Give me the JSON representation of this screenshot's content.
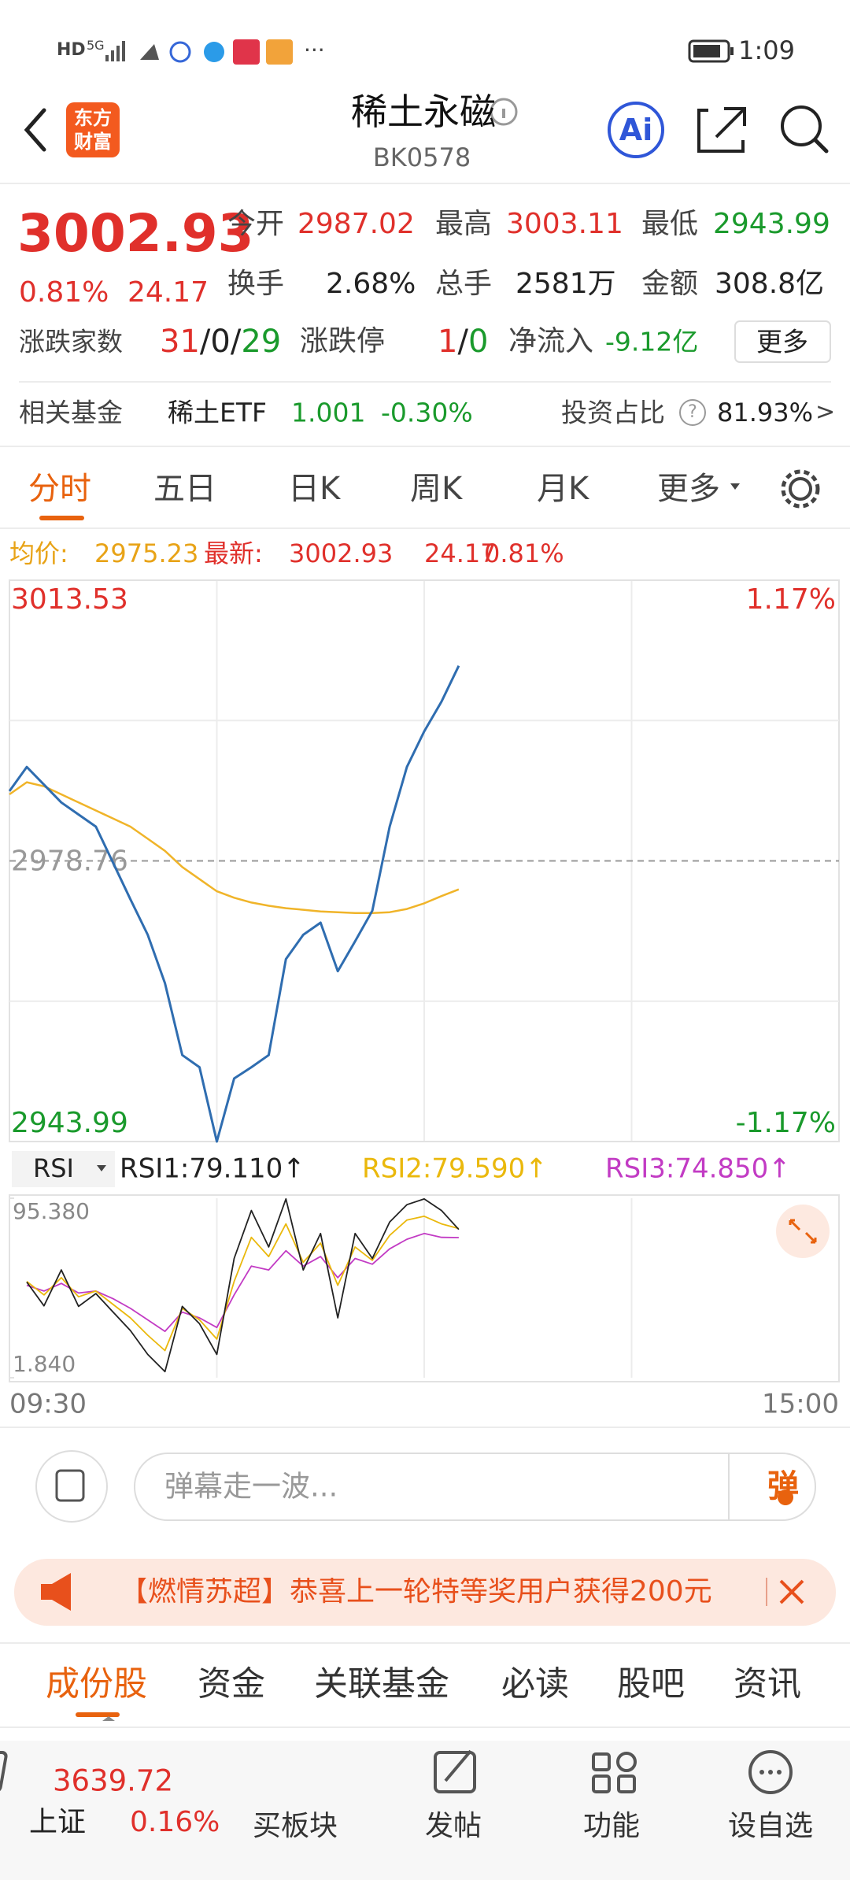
{
  "status_bar": {
    "hd": "HD",
    "network": "5G",
    "more": "···",
    "time": "1:09"
  },
  "header": {
    "logo": [
      "东方",
      "财富"
    ],
    "title": "稀土永磁",
    "code": "BK0578",
    "ai": "Ai"
  },
  "quote": {
    "price": "3002.93",
    "change_pct": "0.81%",
    "change": "24.17",
    "stats": [
      {
        "label": "今开",
        "value": "2987.02",
        "color": "#e0302b"
      },
      {
        "label": "最高",
        "value": "3003.11",
        "color": "#e0302b"
      },
      {
        "label": "最低",
        "value": "2943.99",
        "color": "#1a9a2c"
      },
      {
        "label": "换手",
        "value": "2.68%",
        "color": "#222222"
      },
      {
        "label": "总手",
        "value": "2581万",
        "color": "#222222"
      },
      {
        "label": "金额",
        "value": "308.8亿",
        "color": "#222222"
      }
    ],
    "breadth": {
      "label": "涨跌家数",
      "up": "31",
      "sep1": "/",
      "flat": "0",
      "sep2": "/",
      "down": "29"
    },
    "limit": {
      "label": "涨跌停",
      "up": "1",
      "sep": "/",
      "down": "0"
    },
    "net_inflow": {
      "label": "净流入",
      "value": "-9.12亿"
    },
    "more_button": "更多"
  },
  "fund": {
    "label": "相关基金",
    "name": "稀土ETF",
    "price": "1.001",
    "change": "-0.30%",
    "ratio_label": "投资占比",
    "help": "?",
    "ratio": "81.93%",
    "arrow": ">"
  },
  "tabs": {
    "items": [
      "分时",
      "五日",
      "日K",
      "周K",
      "月K",
      "更多"
    ]
  },
  "summary": {
    "avg_label": "均价:",
    "avg": "2975.23",
    "last_label": "最新:",
    "last": "3002.93",
    "change": "24.17",
    "change_pct": "0.81%"
  },
  "chart_data": [
    {
      "type": "line",
      "x": [
        "09:30",
        "09:35",
        "09:40",
        "09:45",
        "09:50",
        "09:55",
        "10:00",
        "10:05",
        "10:10",
        "10:15",
        "10:20",
        "10:25",
        "10:30",
        "10:35",
        "10:40",
        "10:45",
        "10:50",
        "10:55",
        "11:00",
        "11:05",
        "11:10",
        "11:15",
        "11:20",
        "11:25",
        "11:30",
        "13:05",
        "13:10"
      ],
      "series": [
        {
          "color": "#2f6db0",
          "values": [
            2987.4,
            2990.4,
            2988.2,
            2986.0,
            2984.5,
            2983.0,
            2978.5,
            2974.0,
            2969.6,
            2963.6,
            2954.7,
            2953.2,
            2943.99,
            2951.8,
            2953.2,
            2954.7,
            2966.6,
            2969.6,
            2971.1,
            2965.1,
            2968.8,
            2972.6,
            2983.0,
            2990.4,
            2994.8,
            2998.5,
            3002.93
          ]
        },
        {
          "color": "#f0b429",
          "values": [
            2987.0,
            2988.5,
            2988.0,
            2987.0,
            2986.0,
            2985.0,
            2984.0,
            2983.0,
            2981.5,
            2980.0,
            2978.0,
            2976.5,
            2975.0,
            2974.2,
            2973.6,
            2973.2,
            2972.9,
            2972.7,
            2972.5,
            2972.4,
            2972.3,
            2972.3,
            2972.4,
            2972.8,
            2973.5,
            2974.4,
            2975.23
          ]
        }
      ],
      "xticks": [
        "09:30",
        "15:00"
      ],
      "ylim": [
        2943.99,
        3013.53
      ],
      "yticks": [
        3013.53,
        2978.76,
        2943.99
      ],
      "y2lim": [
        -1.17,
        1.17
      ],
      "y2ticks": [
        {
          "value": 1.17,
          "label": "1.17%"
        },
        {
          "value": -1.17,
          "label": "-1.17%"
        }
      ],
      "grid": true
    },
    {
      "type": "line",
      "selector": "RSI",
      "x": [
        "09:30",
        "09:35",
        "09:40",
        "09:45",
        "09:50",
        "09:55",
        "10:00",
        "10:05",
        "10:10",
        "10:15",
        "10:20",
        "10:25",
        "10:30",
        "10:35",
        "10:40",
        "10:45",
        "10:50",
        "10:55",
        "11:00",
        "11:05",
        "11:10",
        "11:15",
        "11:20",
        "11:25",
        "11:30",
        "13:05",
        "13:10"
      ],
      "series": [
        {
          "name": "RSI1:79.110↑",
          "color": "#222222",
          "values": [
            null,
            51.7,
            39.3,
            58,
            39,
            45.7,
            36,
            26.4,
            14,
            5,
            39,
            30,
            14,
            64,
            89,
            70,
            95,
            58,
            77,
            33,
            77,
            64,
            83,
            92,
            95,
            89,
            79.11
          ]
        },
        {
          "name": "RSI2:79.590↑",
          "color": "#eab80c",
          "values": [
            null,
            52,
            45,
            54,
            44,
            47,
            40,
            33,
            24,
            16,
            38,
            32,
            22,
            52,
            75,
            65,
            82,
            62,
            72,
            50,
            70,
            63,
            76,
            84,
            86,
            82,
            79.59
          ]
        },
        {
          "name": "RSI3:74.850↑",
          "color": "#c23bc4",
          "values": [
            null,
            50,
            47,
            51,
            46,
            47,
            43,
            38,
            32,
            26,
            36,
            33,
            28,
            45,
            60,
            58,
            68,
            60,
            65,
            54,
            64,
            61,
            69,
            74,
            77,
            75,
            74.85
          ]
        }
      ],
      "xticks": [
        "09:30",
        "15:00"
      ],
      "ylim": [
        1.84,
        95.38
      ],
      "yticks": [
        {
          "value": 95.38,
          "label": "95.380"
        },
        {
          "value": 1.84,
          "label": "1.840"
        }
      ],
      "grid": true
    }
  ],
  "comment": {
    "placeholder": "弹幕走一波...",
    "button": "弹"
  },
  "banner": {
    "text": "【燃情苏超】恭喜上一轮特等奖用户获得200元"
  },
  "sub_tabs": {
    "items": [
      "成份股",
      "资金",
      "关联基金",
      "必读",
      "股吧",
      "资讯"
    ]
  },
  "bottom_nav": {
    "index": {
      "value": "3639.72",
      "name": "上证",
      "change": "0.16%"
    },
    "items": [
      "买板块",
      "发帖",
      "功能",
      "设自选"
    ]
  }
}
